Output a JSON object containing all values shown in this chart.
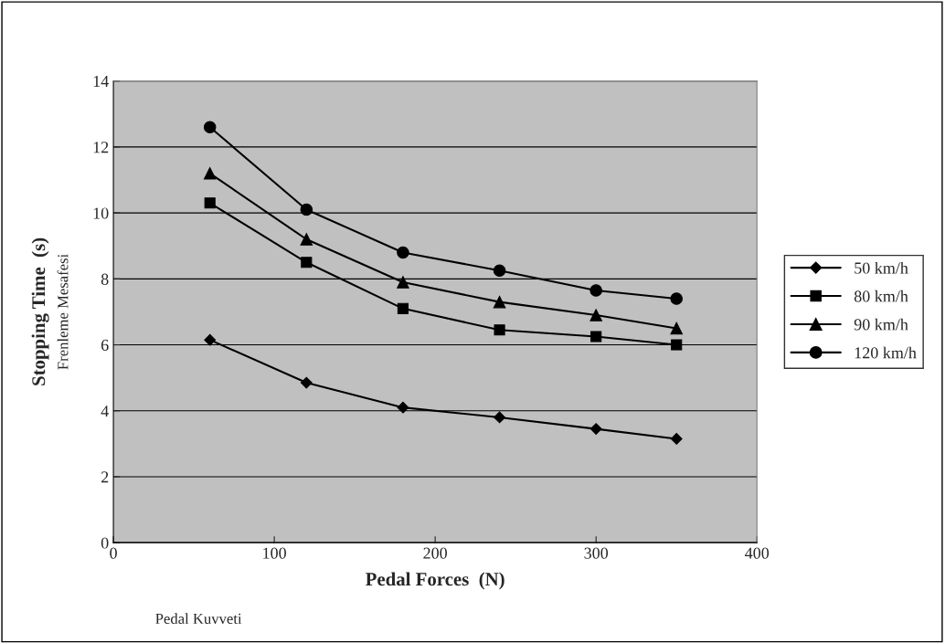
{
  "chart_data": {
    "type": "line",
    "xlabel": "Pedal Forces  (N)",
    "ylabel": "Stopping Time  (s)",
    "annotations": [
      "Frenleme Mesafesi",
      "Pedal Kuvveti"
    ],
    "x": [
      60,
      120,
      180,
      240,
      300,
      350
    ],
    "series": [
      {
        "name": "50 km/h",
        "color": "#000000",
        "marker": "diamond",
        "values": [
          6.15,
          4.85,
          4.1,
          3.8,
          3.45,
          3.15
        ]
      },
      {
        "name": "80 km/h",
        "color": "#000000",
        "marker": "square",
        "values": [
          10.3,
          8.5,
          7.1,
          6.45,
          6.25,
          6.0
        ]
      },
      {
        "name": "90 km/h",
        "color": "#000000",
        "marker": "triangle",
        "values": [
          11.2,
          9.2,
          7.9,
          7.3,
          6.9,
          6.5
        ]
      },
      {
        "name": "120 km/h",
        "color": "#000000",
        "marker": "circle",
        "values": [
          12.6,
          10.1,
          8.8,
          8.25,
          7.65,
          7.4
        ]
      }
    ],
    "xlim": [
      0,
      400
    ],
    "xticks": [
      0,
      100,
      200,
      300,
      400
    ],
    "ylim": [
      0,
      14
    ],
    "yticks": [
      0,
      2,
      4,
      6,
      8,
      10,
      12,
      14
    ],
    "grid": "y",
    "legend": "right",
    "line_style": "solid"
  }
}
